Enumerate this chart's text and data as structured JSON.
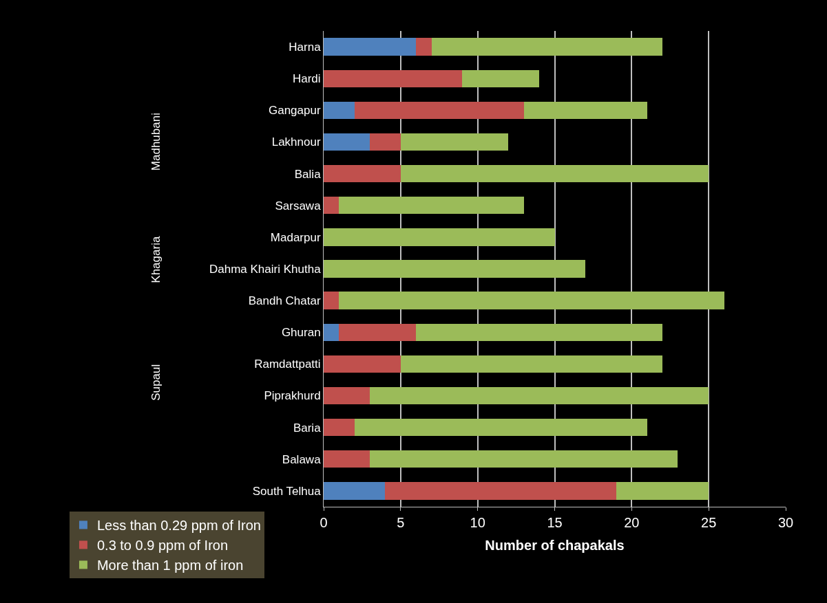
{
  "chart_data": {
    "type": "bar",
    "orientation": "horizontal",
    "stacked": true,
    "xlabel": "Number of chapakals",
    "categories": [
      "Harna",
      "Hardi",
      "Gangapur",
      "Lakhnour",
      "Balia",
      "Sarsawa",
      "Madarpur",
      "Dahma Khairi Khutha",
      "Bandh Chatar",
      "Ghuran",
      "Ramdattpatti",
      "Piprakhurd",
      "Baria",
      "Balawa",
      "South Telhua"
    ],
    "series": [
      {
        "name": "Less than 0.29 ppm of Iron",
        "color": "#4f81bd",
        "values": [
          6,
          0,
          2,
          3,
          0,
          0,
          0,
          0,
          0,
          1,
          0,
          0,
          0,
          0,
          4
        ]
      },
      {
        "name": "0.3 to 0.9 ppm of Iron",
        "color": "#c0504d",
        "values": [
          1,
          9,
          11,
          2,
          5,
          1,
          0,
          0,
          1,
          5,
          5,
          3,
          2,
          3,
          15
        ]
      },
      {
        "name": "More than 1 ppm of iron",
        "color": "#9bbb59",
        "values": [
          15,
          5,
          8,
          7,
          20,
          12,
          15,
          17,
          25,
          16,
          17,
          22,
          19,
          20,
          6
        ]
      }
    ],
    "xlim": [
      0,
      30
    ],
    "xticks": [
      0,
      5,
      10,
      15,
      20,
      25,
      30
    ],
    "grid": "x",
    "legend": "bottom left",
    "annotations": [
      "Madhubani",
      "Khagaria",
      "Supaul"
    ]
  }
}
